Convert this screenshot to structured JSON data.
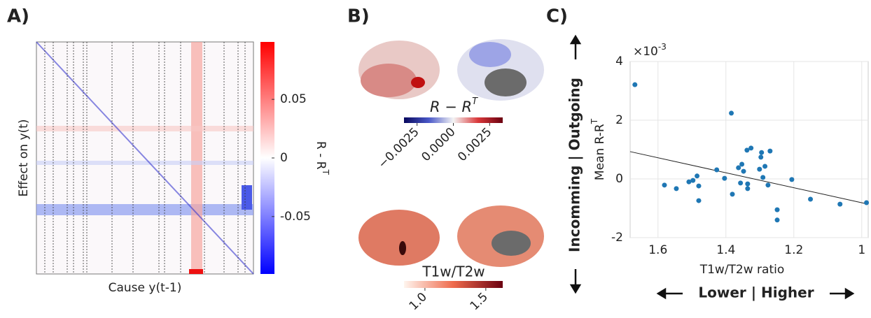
{
  "panel_labels": [
    "A)",
    "B)",
    "C)"
  ],
  "panel_a": {
    "type": "heatmap",
    "xlabel": "Cause y(t-1)",
    "ylabel": "Effect on y(t)",
    "colorbar": {
      "label": {
        "base": "R - R",
        "sup": "T"
      },
      "clim": [
        -0.099,
        0.099
      ],
      "ticks": [
        0.05,
        0,
        -0.05
      ]
    }
  },
  "panel_b": {
    "colorbars": [
      {
        "title": {
          "base": "R − R",
          "sup": "T"
        },
        "clim": [
          -0.0034,
          0.0034
        ],
        "ticks": [
          {
            "value": -0.0025,
            "label": "−0.0025"
          },
          {
            "value": 0,
            "label": "0.0000"
          },
          {
            "value": 0.0025,
            "label": "0.0025"
          }
        ]
      },
      {
        "title": "T1w/T2w",
        "clim": [
          0.828,
          1.639
        ],
        "ticks": [
          {
            "value": 1.0,
            "label": "1.0"
          },
          1.5
        ]
      }
    ]
  },
  "chart_data": {
    "type": "scatter",
    "xlabel": "T1w/T2w ratio",
    "ylabel": {
      "base": "Mean R-R",
      "sup": "T"
    },
    "y_multiplier": {
      "base": "×10",
      "sup": "-3"
    },
    "vertical_arrow_label": "Incomming | Outgoing",
    "horizontal_arrow_label": "Lower | Higher",
    "xlim": [
      1.682,
      0.981
    ],
    "ylim": [
      -2,
      4
    ],
    "xticks": [
      1.6,
      1.4,
      1.2,
      1
    ],
    "yticks": [
      -2,
      0,
      2,
      4
    ],
    "grid": true,
    "color": "#1f77b4",
    "x": [
      1.668,
      1.581,
      1.546,
      1.509,
      1.497,
      1.485,
      1.48,
      1.48,
      1.427,
      1.404,
      1.384,
      1.381,
      1.363,
      1.357,
      1.353,
      1.348,
      1.338,
      1.326,
      1.336,
      1.336,
      1.301,
      1.297,
      1.295,
      1.291,
      1.285,
      1.276,
      1.27,
      1.249,
      1.249,
      1.206,
      1.151,
      1.064,
      0.986
    ],
    "values": [
      3.21,
      -0.21,
      -0.33,
      -0.1,
      -0.05,
      0.1,
      -0.24,
      -0.74,
      0.31,
      0.02,
      2.24,
      -0.52,
      0.38,
      -0.14,
      0.5,
      0.26,
      0.98,
      1.05,
      -0.17,
      -0.33,
      0.33,
      0.74,
      0.9,
      0.05,
      0.43,
      -0.21,
      0.95,
      -1.05,
      -1.4,
      -0.02,
      -0.69,
      -0.86,
      -0.81
    ],
    "fit_line": {
      "x": [
        1.682,
        0.981
      ],
      "y": [
        0.93,
        -0.86
      ],
      "color": "#222222"
    }
  }
}
